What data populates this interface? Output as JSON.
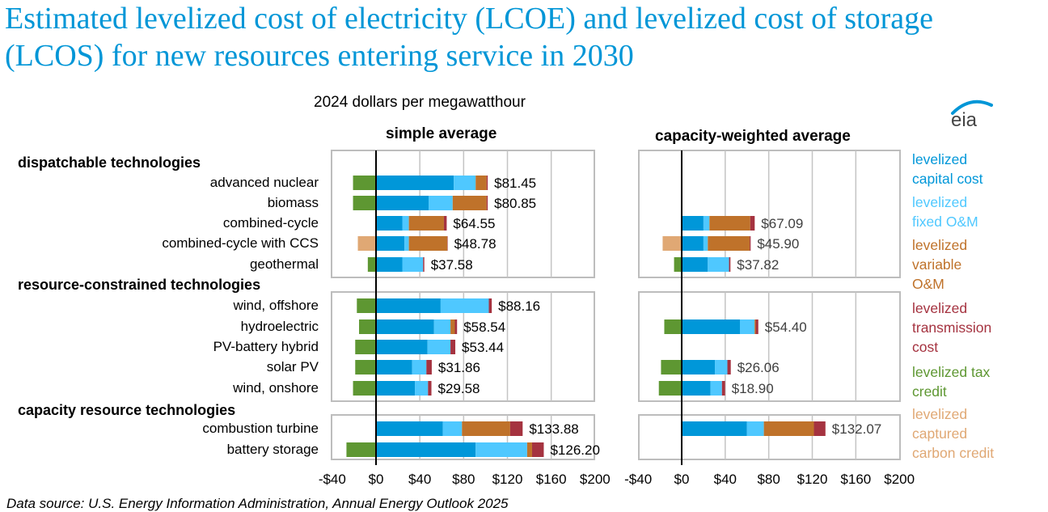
{
  "title": "Estimated levelized cost of electricity (LCOE) and levelized cost of storage (LCOS) for new resources entering service in 2030",
  "units_label": "2024 dollars per megawatthour",
  "logo_text": "eia",
  "source": "Data source:  U.S. Energy Information Administration, Annual Energy Outlook 2025",
  "chart_data": {
    "type": "bar",
    "orientation": "horizontal-stacked",
    "title": "Estimated levelized cost of electricity (LCOE) and levelized cost of storage (LCOS) for new resources entering service in 2030",
    "xlabel": "2024 dollars per megawatthour",
    "xlim": [
      -40,
      200
    ],
    "xticks": [
      "-$40",
      "$0",
      "$40",
      "$80",
      "$120",
      "$160",
      "$200"
    ],
    "xtick_values": [
      -40,
      0,
      40,
      80,
      120,
      160,
      200
    ],
    "grid": true,
    "legend_position": "right",
    "components": [
      {
        "key": "cap",
        "label": "levelized capital cost",
        "color": "#0097d9"
      },
      {
        "key": "fom",
        "label": "levelized fixed O&M",
        "color": "#4fc8ff"
      },
      {
        "key": "vom",
        "label": "levelized variable O&M",
        "color": "#bf722a"
      },
      {
        "key": "trans",
        "label": "levelized transmission cost",
        "color": "#a53340"
      },
      {
        "key": "tax",
        "label": "levelized tax credit",
        "color": "#5e9732"
      },
      {
        "key": "carbon",
        "label": "levelized captured carbon credit",
        "color": "#e0a874"
      }
    ],
    "groups": [
      {
        "name": "dispatchable technologies",
        "rows": [
          "advanced nuclear",
          "biomass",
          "combined-cycle",
          "combined-cycle with CCS",
          "geothermal"
        ]
      },
      {
        "name": "resource-constrained technologies",
        "rows": [
          "wind, offshore",
          "hydroelectric",
          "PV-battery hybrid",
          "solar PV",
          "wind, onshore"
        ]
      },
      {
        "name": "capacity resource technologies",
        "rows": [
          "combustion turbine",
          "battery storage"
        ]
      }
    ],
    "panels": [
      {
        "title": "simple average",
        "series": [
          {
            "name": "advanced nuclear",
            "total_label": "$81.45",
            "cap": 71,
            "fom": 20,
            "vom": 10,
            "trans": 1,
            "tax": -21,
            "carbon": 0
          },
          {
            "name": "biomass",
            "total_label": "$80.85",
            "cap": 48,
            "fom": 22,
            "vom": 31,
            "trans": 1,
            "tax": -21,
            "carbon": 0
          },
          {
            "name": "combined-cycle",
            "total_label": "$64.55",
            "cap": 24,
            "fom": 6,
            "vom": 32,
            "trans": 2.55,
            "tax": 0,
            "carbon": 0
          },
          {
            "name": "combined-cycle with CCS",
            "total_label": "$48.78",
            "cap": 26,
            "fom": 4,
            "vom": 35,
            "trans": 0.4,
            "tax": 0,
            "carbon": -16.6
          },
          {
            "name": "geothermal",
            "total_label": "$37.58",
            "cap": 24,
            "fom": 19,
            "vom": 0,
            "trans": 1.1,
            "tax": -7.5,
            "carbon": 0
          },
          {
            "name": "wind, offshore",
            "total_label": "$88.16",
            "cap": 59,
            "fom": 44,
            "vom": 0,
            "trans": 2.7,
            "tax": -17.5,
            "carbon": 0
          },
          {
            "name": "hydroelectric",
            "total_label": "$58.54",
            "cap": 53,
            "fom": 15,
            "vom": 4,
            "trans": 2,
            "tax": -15.5,
            "carbon": 0
          },
          {
            "name": "PV-battery hybrid",
            "total_label": "$53.44",
            "cap": 47,
            "fom": 21,
            "vom": 0,
            "trans": 4.4,
            "tax": -19,
            "carbon": 0
          },
          {
            "name": "solar PV",
            "total_label": "$31.86",
            "cap": 33,
            "fom": 13,
            "vom": 0,
            "trans": 4.9,
            "tax": -19,
            "carbon": 0
          },
          {
            "name": "wind, onshore",
            "total_label": "$29.58",
            "cap": 35.5,
            "fom": 12,
            "vom": 0,
            "trans": 3.1,
            "tax": -21,
            "carbon": 0
          },
          {
            "name": "combustion turbine",
            "total_label": "$133.88",
            "cap": 61,
            "fom": 17.5,
            "vom": 44,
            "trans": 11.4,
            "tax": 0,
            "carbon": 0
          },
          {
            "name": "battery storage",
            "total_label": "$126.20",
            "cap": 91,
            "fom": 47,
            "vom": 4.5,
            "trans": 10.7,
            "tax": -27,
            "carbon": 0
          }
        ]
      },
      {
        "title": "capacity-weighted average",
        "series": [
          {
            "name": "advanced nuclear",
            "total_label": null
          },
          {
            "name": "biomass",
            "total_label": null
          },
          {
            "name": "combined-cycle",
            "total_label": "$67.09",
            "cap": 20,
            "fom": 5.5,
            "vom": 37.5,
            "trans": 4.1,
            "tax": 0,
            "carbon": 0
          },
          {
            "name": "combined-cycle with CCS",
            "total_label": "$45.90",
            "cap": 20,
            "fom": 4,
            "vom": 38.5,
            "trans": 0.9,
            "tax": 0,
            "carbon": -17.5
          },
          {
            "name": "geothermal",
            "total_label": "$37.82",
            "cap": 24,
            "fom": 19.5,
            "vom": 0,
            "trans": 1.3,
            "tax": -7,
            "carbon": 0
          },
          {
            "name": "wind, offshore",
            "total_label": null
          },
          {
            "name": "hydroelectric",
            "total_label": "$54.40",
            "cap": 53.5,
            "fom": 13.5,
            "vom": 1,
            "trans": 2.4,
            "tax": -16,
            "carbon": 0
          },
          {
            "name": "PV-battery hybrid",
            "total_label": null
          },
          {
            "name": "solar PV",
            "total_label": "$26.06",
            "cap": 30.5,
            "fom": 11.5,
            "vom": 0,
            "trans": 3.1,
            "tax": -19,
            "carbon": 0
          },
          {
            "name": "wind, onshore",
            "total_label": "$18.90",
            "cap": 26.5,
            "fom": 10.5,
            "vom": 0,
            "trans": 2.9,
            "tax": -21,
            "carbon": 0
          },
          {
            "name": "combustion turbine",
            "total_label": "$132.07",
            "cap": 60,
            "fom": 15.5,
            "vom": 46,
            "trans": 10.6,
            "tax": 0,
            "carbon": 0
          },
          {
            "name": "battery storage",
            "total_label": null
          }
        ]
      }
    ]
  },
  "legend": [
    {
      "text": "levelized capital cost",
      "lines": [
        "levelized",
        "capital cost"
      ],
      "color": "#0097d9"
    },
    {
      "text": "levelized fixed O&M",
      "lines": [
        "levelized",
        "fixed O&M"
      ],
      "color": "#4fc8ff"
    },
    {
      "text": "levelized variable O&M",
      "lines": [
        "levelized",
        "variable",
        "O&M"
      ],
      "color": "#bf722a"
    },
    {
      "text": "levelized transmission cost",
      "lines": [
        "levelized",
        "transmission",
        "cost"
      ],
      "color": "#a53340"
    },
    {
      "text": "levelized tax credit",
      "lines": [
        "levelized tax",
        "credit"
      ],
      "color": "#5e9732"
    },
    {
      "text": "levelized captured carbon credit",
      "lines": [
        "levelized",
        "captured",
        "carbon credit"
      ],
      "color": "#e0a874"
    }
  ]
}
